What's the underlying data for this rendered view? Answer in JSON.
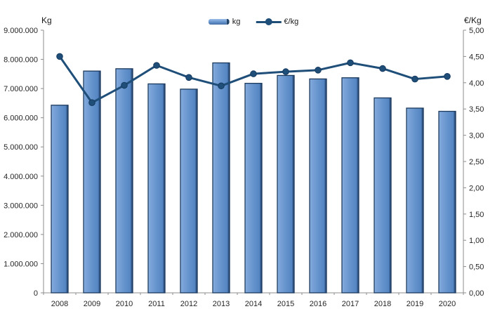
{
  "colors": {
    "bar_fill": "#6593cc",
    "bar_highlight": "#9dbee8",
    "bar_shadow": "#24466b",
    "bar_border": "#1c3a5e",
    "line": "#1f4e79",
    "marker_border": "#163a5f",
    "axis_line": "#8c8c8c",
    "tick_text": "#262626"
  },
  "legend": {
    "position": "top",
    "entries": [
      {
        "label": "kg",
        "swatch": "bar-swatch-icon"
      },
      {
        "label": "€/kg",
        "swatch": "line-marker-swatch-icon"
      }
    ]
  },
  "chart_data": {
    "type": "bar",
    "subtype": "bar+line combo",
    "title": "",
    "grid": false,
    "categories": [
      "2008",
      "2009",
      "2010",
      "2011",
      "2012",
      "2013",
      "2014",
      "2015",
      "2016",
      "2017",
      "2018",
      "2019",
      "2020"
    ],
    "series": [
      {
        "name": "kg",
        "type": "bar",
        "axis": "left",
        "values": [
          6430000,
          7600000,
          7680000,
          7160000,
          6980000,
          7880000,
          7180000,
          7450000,
          7330000,
          7370000,
          6680000,
          6330000,
          6220000
        ]
      },
      {
        "name": "€/kg",
        "type": "line",
        "axis": "right",
        "values": [
          4.5,
          3.62,
          3.95,
          4.33,
          4.1,
          3.94,
          4.17,
          4.21,
          4.24,
          4.38,
          4.27,
          4.07,
          4.12
        ]
      }
    ],
    "left_axis": {
      "title": "Kg",
      "min": 0,
      "max": 9000000,
      "tick_labels": [
        "9.000.000",
        "8.000.000",
        "7.000.000",
        "6.000.000",
        "5.000.000",
        "4.000.000",
        "3.000.000",
        "2.000.000",
        "1.000.000",
        "0"
      ]
    },
    "right_axis": {
      "title": "€/Kg",
      "min": 0,
      "max": 5,
      "tick_labels": [
        "5,00",
        "4,50",
        "4,00",
        "3,50",
        "3,00",
        "2,50",
        "2,00",
        "1,50",
        "1,00",
        "0,50",
        "0,00"
      ]
    }
  }
}
